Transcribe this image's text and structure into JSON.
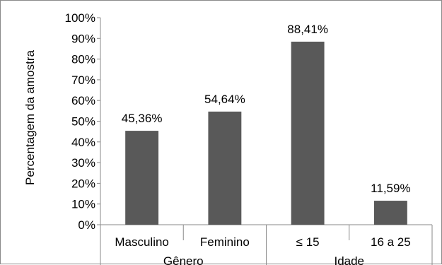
{
  "chart_data": {
    "type": "bar",
    "categories": [
      "Masculino",
      "Feminino",
      "≤ 15",
      "16 a 25"
    ],
    "values": [
      45.36,
      54.64,
      88.41,
      11.59
    ],
    "data_labels": [
      "45,36%",
      "54,64%",
      "88,41%",
      "11,59%"
    ],
    "groups": [
      {
        "label": "Gênero",
        "categories": [
          "Masculino",
          "Feminino"
        ]
      },
      {
        "label": "Idade",
        "categories": [
          "≤ 15",
          "16 a 25"
        ]
      }
    ],
    "ylabel": "Percentagem da amostra",
    "ylim": [
      0,
      100
    ],
    "yticks": [
      "0%",
      "10%",
      "20%",
      "30%",
      "40%",
      "50%",
      "60%",
      "70%",
      "80%",
      "90%",
      "100%"
    ],
    "grid": false,
    "bar_color": "#595959"
  }
}
